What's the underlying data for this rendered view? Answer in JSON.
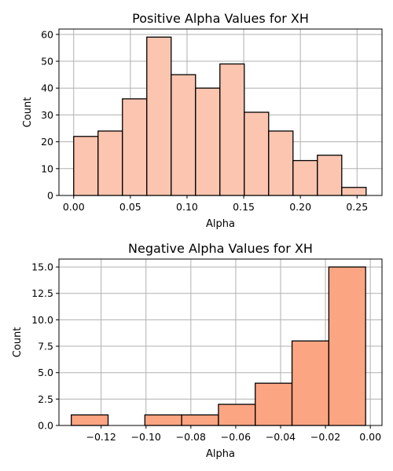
{
  "chart_data": [
    {
      "type": "bar",
      "title": "Positive Alpha Values for XH",
      "xlabel": "Alpha",
      "ylabel": "Count",
      "xlim": [
        -0.013,
        0.272
      ],
      "ylim": [
        0,
        62
      ],
      "xticks": [
        0.0,
        0.05,
        0.1,
        0.15,
        0.2,
        0.25
      ],
      "xtick_labels": [
        "0.00",
        "0.05",
        "0.10",
        "0.15",
        "0.20",
        "0.25"
      ],
      "yticks": [
        0,
        10,
        20,
        30,
        40,
        50,
        60
      ],
      "ytick_labels": [
        "0",
        "10",
        "20",
        "30",
        "40",
        "50",
        "60"
      ],
      "grid": true,
      "color": "#fcc5b0",
      "bin_edges": [
        0.0,
        0.0215,
        0.043,
        0.0645,
        0.086,
        0.1075,
        0.129,
        0.1505,
        0.172,
        0.1935,
        0.215,
        0.2365,
        0.258
      ],
      "values": [
        22,
        24,
        36,
        59,
        45,
        40,
        49,
        31,
        24,
        13,
        15,
        3
      ]
    },
    {
      "type": "bar",
      "title": "Negative Alpha Values for XH",
      "xlabel": "Alpha",
      "ylabel": "Count",
      "xlim": [
        -0.1388,
        0.0052
      ],
      "ylim": [
        0,
        15.75
      ],
      "xticks": [
        -0.12,
        -0.1,
        -0.08,
        -0.06,
        -0.04,
        -0.02,
        0.0
      ],
      "xtick_labels": [
        "−0.12",
        "−0.10",
        "−0.08",
        "−0.06",
        "−0.04",
        "−0.02",
        "0.00"
      ],
      "yticks": [
        0,
        2.5,
        5,
        7.5,
        10,
        12.5,
        15
      ],
      "ytick_labels": [
        "0.0",
        "2.5",
        "5.0",
        "7.5",
        "10.0",
        "12.5",
        "15.0"
      ],
      "grid": true,
      "color": "#fca583",
      "bin_edges": [
        -0.1333,
        -0.1169,
        -0.1005,
        -0.0841,
        -0.0677,
        -0.0513,
        -0.0349,
        -0.0185,
        -0.0021
      ],
      "values": [
        1,
        0,
        1,
        1,
        2,
        4,
        8,
        15
      ]
    }
  ]
}
